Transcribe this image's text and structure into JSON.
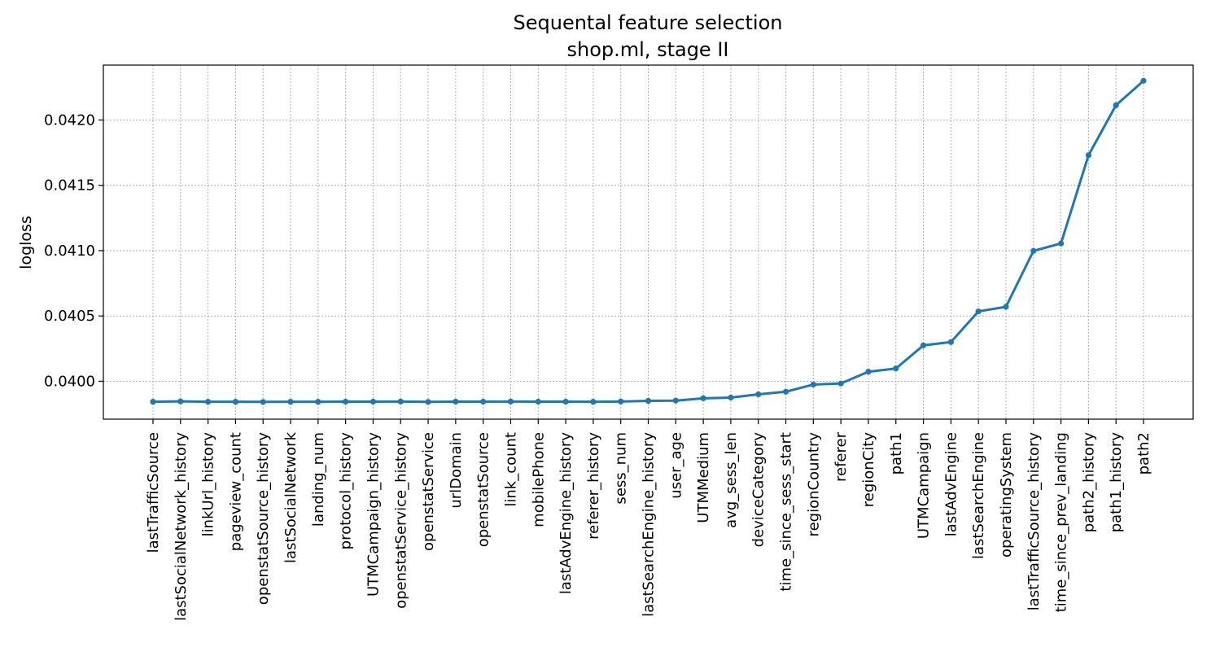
{
  "chart_data": {
    "type": "line",
    "title": "Sequental feature selection",
    "subtitle": "shop.ml, stage II",
    "xlabel": "",
    "ylabel": "logloss",
    "grid": true,
    "color": "#1f77b4",
    "ylim": [
      0.03971,
      0.04242
    ],
    "yticks": [
      0.04,
      0.0405,
      0.041,
      0.0415,
      0.042
    ],
    "ytick_labels": [
      "0.0400",
      "0.0405",
      "0.0410",
      "0.0415",
      "0.0420"
    ],
    "categories": [
      "lastTrafficSource",
      "lastSocialNetwork_history",
      "linkUrl_history",
      "pageview_count",
      "openstatSource_history",
      "lastSocialNetwork",
      "landing_num",
      "protocol_history",
      "UTMCampaign_history",
      "openstatService_history",
      "openstatService",
      "urlDomain",
      "openstatSource",
      "link_count",
      "mobilePhone",
      "lastAdvEngine_history",
      "referer_history",
      "sess_num",
      "lastSearchEngine_history",
      "user_age",
      "UTMMedium",
      "avg_sess_len",
      "deviceCategory",
      "time_since_sess_start",
      "regionCountry",
      "referer",
      "regionCity",
      "path1",
      "UTMCampaign",
      "lastAdvEngine",
      "lastSearchEngine",
      "operatingSystem",
      "lastTrafficSource_history",
      "time_since_prev_landing",
      "path2_history",
      "path1_history",
      "path2"
    ],
    "values": [
      0.039843,
      0.039846,
      0.039843,
      0.039843,
      0.039842,
      0.039843,
      0.039843,
      0.039844,
      0.039844,
      0.039845,
      0.039842,
      0.039844,
      0.039844,
      0.039845,
      0.039844,
      0.039844,
      0.039843,
      0.039845,
      0.03985,
      0.039852,
      0.03987,
      0.039875,
      0.0399,
      0.03992,
      0.039975,
      0.039983,
      0.040073,
      0.040098,
      0.040275,
      0.0403,
      0.040535,
      0.04057,
      0.040998,
      0.041055,
      0.04173,
      0.042113,
      0.0423
    ]
  }
}
